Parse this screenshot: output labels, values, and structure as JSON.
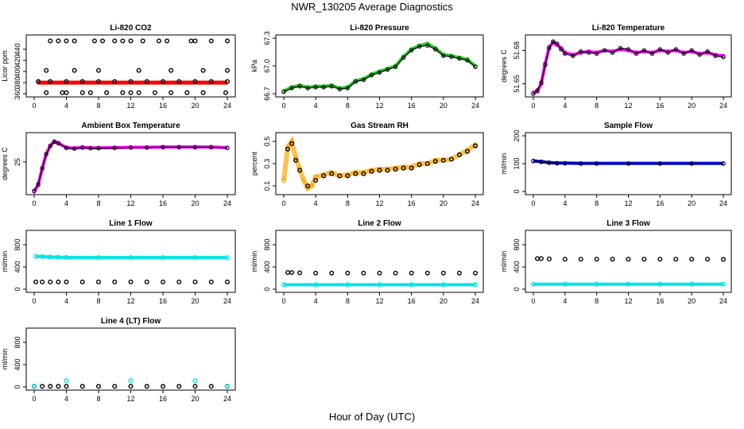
{
  "title": "NWR_130205  Average Diagnostics",
  "xlabel": "Hour of Day (UTC)",
  "chart_data": [
    {
      "type": "scatter",
      "title": "Li-820 CO2",
      "ylabel": "Licor ppm",
      "xlim": [
        0,
        24
      ],
      "ylim": [
        360,
        460
      ],
      "xticks": [
        "0",
        "4",
        "8",
        "12",
        "16",
        "20",
        "24"
      ],
      "yticks": [
        360,
        380,
        400,
        420,
        440
      ],
      "series": [
        {
          "name": "red",
          "color": "#ff0000",
          "marker": "filled",
          "x": [
            0.4,
            24
          ],
          "y": [
            380,
            380
          ]
        },
        {
          "name": "black",
          "color": "#000000",
          "marker": "open",
          "x": [
            2,
            3,
            4,
            5,
            7.5,
            8.5,
            10,
            11,
            12,
            13.5,
            15.5,
            16.5,
            19.5,
            20,
            22,
            24,
            0.5,
            2,
            4,
            6,
            8,
            10,
            12,
            14,
            16,
            18,
            20,
            22,
            24,
            1.5,
            3.5,
            4,
            6,
            7,
            9,
            11,
            12,
            13,
            15,
            17,
            19,
            21,
            23.8,
            1.5,
            5,
            8,
            13,
            17,
            21,
            24
          ],
          "y": [
            455,
            455,
            455,
            455,
            455,
            455,
            455,
            455,
            455,
            455,
            455,
            455,
            455,
            455,
            455,
            455,
            382,
            382,
            382,
            382,
            382,
            382,
            382,
            382,
            382,
            382,
            382,
            382,
            382,
            362,
            362,
            362,
            362,
            362,
            362,
            362,
            362,
            362,
            362,
            362,
            362,
            362,
            362,
            402,
            402,
            402,
            402,
            402,
            402,
            402
          ]
        }
      ]
    },
    {
      "type": "line",
      "title": "Li-820 Pressure",
      "ylabel": "kPa",
      "xlim": [
        0,
        24
      ],
      "ylim": [
        66.7,
        67.3
      ],
      "xticks": [
        "0",
        "4",
        "8",
        "12",
        "16",
        "20",
        "24"
      ],
      "yticks": [
        "66.7",
        "67.0",
        "67.3"
      ],
      "series": [
        {
          "name": "band",
          "color": "#22cc22",
          "x": [
            0,
            1,
            2,
            3,
            4,
            5,
            6,
            7,
            8,
            9,
            10,
            11,
            12,
            13,
            14,
            15,
            16,
            17,
            18,
            19,
            20,
            21,
            22,
            23,
            24
          ],
          "y": [
            66.73,
            66.77,
            66.79,
            66.77,
            66.78,
            66.78,
            66.79,
            66.76,
            66.77,
            66.84,
            66.86,
            66.91,
            66.94,
            66.97,
            67.0,
            67.1,
            67.18,
            67.22,
            67.24,
            67.19,
            67.12,
            67.11,
            67.09,
            67.07,
            67.0
          ]
        },
        {
          "name": "black",
          "color": "#000000",
          "x": [
            0,
            1,
            2,
            3,
            4,
            5,
            6,
            7,
            8,
            9,
            10,
            11,
            12,
            13,
            14,
            15,
            16,
            17,
            18,
            19,
            20,
            21,
            22,
            23,
            24
          ],
          "y": [
            66.72,
            66.76,
            66.78,
            66.76,
            66.77,
            66.77,
            66.78,
            66.75,
            66.76,
            66.83,
            66.85,
            66.9,
            66.93,
            66.96,
            66.99,
            67.09,
            67.17,
            67.21,
            67.22,
            67.18,
            67.11,
            67.1,
            67.08,
            67.06,
            66.99
          ]
        }
      ]
    },
    {
      "type": "line",
      "title": "Li-820 Temperature",
      "ylabel": "degrees C",
      "xlim": [
        0,
        24
      ],
      "ylim": [
        51.641,
        51.691
      ],
      "xticks": [
        "0",
        "4",
        "8",
        "12",
        "16",
        "20",
        "24"
      ],
      "yticks": [
        "51.65",
        "51.68"
      ],
      "series": [
        {
          "name": "band",
          "color": "#ff00ff",
          "x": [
            0,
            0.5,
            1,
            1.5,
            2,
            2.5,
            3,
            3.5,
            4,
            5,
            6,
            7,
            8,
            9,
            10,
            11,
            12,
            13,
            14,
            15,
            16,
            17,
            18,
            19,
            20,
            21,
            22,
            23,
            24
          ],
          "y": [
            51.642,
            51.643,
            51.65,
            51.668,
            51.683,
            51.687,
            51.685,
            51.682,
            51.678,
            51.676,
            51.678,
            51.679,
            51.678,
            51.68,
            51.679,
            51.681,
            51.68,
            51.678,
            51.679,
            51.678,
            51.68,
            51.679,
            51.68,
            51.678,
            51.679,
            51.677,
            51.678,
            51.676,
            51.675
          ]
        },
        {
          "name": "black",
          "color": "#000000",
          "x": [
            0,
            0.5,
            1,
            1.5,
            2,
            2.5,
            3,
            3.5,
            4,
            5,
            6,
            7,
            8,
            9,
            10,
            11,
            12,
            13,
            14,
            15,
            16,
            17,
            18,
            19,
            20,
            21,
            22,
            23,
            24
          ],
          "y": [
            51.641,
            51.644,
            51.651,
            51.667,
            51.682,
            51.688,
            51.686,
            51.681,
            51.677,
            51.675,
            51.679,
            51.678,
            51.677,
            51.68,
            51.678,
            51.682,
            51.681,
            51.677,
            51.68,
            51.677,
            51.681,
            51.678,
            51.681,
            51.677,
            51.68,
            51.676,
            51.679,
            51.675,
            51.674
          ]
        }
      ]
    },
    {
      "type": "line",
      "title": "Ambient Box Temperature",
      "ylabel": "degrees C",
      "xlim": [
        0,
        24
      ],
      "ylim": [
        16,
        33
      ],
      "xticks": [
        "0",
        "4",
        "8",
        "12",
        "16",
        "20",
        "24"
      ],
      "yticks": [
        "25"
      ],
      "series": [
        {
          "name": "magenta",
          "color": "#ff00ff",
          "x": [
            0,
            0.5,
            1,
            1.5,
            2,
            2.5,
            3,
            4,
            5,
            6,
            7,
            8,
            10,
            12,
            14,
            16,
            18,
            20,
            22,
            24
          ],
          "y": [
            16,
            18,
            23,
            27.5,
            30,
            31.3,
            30.8,
            29.4,
            29.2,
            29.5,
            29.3,
            29.3,
            29.4,
            29.5,
            29.5,
            29.6,
            29.6,
            29.6,
            29.6,
            29.4
          ]
        },
        {
          "name": "black",
          "color": "#000000",
          "x": [
            0,
            0.5,
            1,
            1.5,
            2,
            2.5,
            3,
            4,
            5,
            6,
            7,
            8,
            10,
            12,
            14,
            16,
            18,
            20,
            22,
            24
          ],
          "y": [
            16.2,
            18.2,
            23.1,
            27.4,
            29.9,
            31.2,
            30.7,
            29.3,
            29.1,
            29.4,
            29.2,
            29.2,
            29.3,
            29.4,
            29.4,
            29.5,
            29.5,
            29.5,
            29.5,
            29.3
          ]
        }
      ]
    },
    {
      "type": "scatter",
      "title": "Gas Stream RH",
      "ylabel": "percent",
      "xlim": [
        0,
        24
      ],
      "ylim": [
        0.05,
        0.55
      ],
      "xticks": [
        "0",
        "4",
        "8",
        "12",
        "16",
        "20",
        "24"
      ],
      "yticks": [
        "0.1",
        "0.3",
        "0.5"
      ],
      "series": [
        {
          "name": "orange",
          "color": "#ffa500",
          "x": [
            0,
            0.5,
            1,
            1.5,
            2,
            2.5,
            3,
            3.5,
            4,
            5,
            6,
            7,
            8,
            9,
            10,
            11,
            12,
            13,
            14,
            15,
            16,
            17,
            18,
            19,
            20,
            21,
            22,
            23,
            24
          ],
          "y": [
            0.15,
            0.45,
            0.5,
            0.35,
            0.25,
            0.15,
            0.08,
            0.1,
            0.18,
            0.2,
            0.22,
            0.19,
            0.2,
            0.22,
            0.22,
            0.24,
            0.25,
            0.25,
            0.26,
            0.27,
            0.27,
            0.3,
            0.3,
            0.33,
            0.33,
            0.34,
            0.38,
            0.42,
            0.47
          ]
        },
        {
          "name": "black",
          "color": "#000000",
          "x": [
            0.5,
            1,
            1.5,
            2,
            3,
            4,
            5,
            6,
            7,
            8,
            9,
            10,
            11,
            12,
            13,
            14,
            15,
            16,
            17,
            18,
            19,
            20,
            21,
            22,
            23,
            24
          ],
          "y": [
            0.43,
            0.48,
            0.33,
            0.24,
            0.1,
            0.15,
            0.19,
            0.21,
            0.19,
            0.19,
            0.21,
            0.21,
            0.23,
            0.24,
            0.24,
            0.25,
            0.26,
            0.26,
            0.29,
            0.3,
            0.32,
            0.33,
            0.34,
            0.38,
            0.41,
            0.46
          ]
        }
      ]
    },
    {
      "type": "line",
      "title": "Sample Flow",
      "ylabel": "ml/min",
      "xlim": [
        0,
        24
      ],
      "ylim": [
        0,
        200
      ],
      "xticks": [
        "0",
        "4",
        "8",
        "12",
        "16",
        "20",
        "24"
      ],
      "yticks": [
        0,
        100,
        200
      ],
      "series": [
        {
          "name": "blue",
          "color": "#0000ee",
          "x": [
            0,
            1,
            2,
            3,
            4,
            6,
            8,
            12,
            16,
            20,
            24
          ],
          "y": [
            110,
            107,
            104,
            102,
            102,
            101,
            101,
            101,
            101,
            101,
            101
          ]
        },
        {
          "name": "black",
          "color": "#000000",
          "x": [
            0,
            1,
            2,
            3,
            4,
            6,
            8,
            12,
            16,
            20,
            24
          ],
          "y": [
            109,
            106,
            103,
            101,
            101,
            100,
            100,
            100,
            100,
            100,
            100
          ]
        }
      ]
    },
    {
      "type": "scatter",
      "title": "Line 1 Flow",
      "ylabel": "ml/min",
      "xlim": [
        0,
        24
      ],
      "ylim": [
        0,
        1000
      ],
      "xticks": [
        "0",
        "4",
        "8",
        "12",
        "16",
        "20",
        "24"
      ],
      "yticks": [
        0,
        400,
        800
      ],
      "series": [
        {
          "name": "cyan",
          "color": "#00e5e5",
          "x": [
            0.2,
            1,
            2,
            3,
            4,
            8,
            12,
            16,
            20,
            24
          ],
          "y": [
            590,
            585,
            578,
            575,
            572,
            570,
            570,
            570,
            570,
            568
          ]
        },
        {
          "name": "black",
          "color": "#000000",
          "x": [
            0.2,
            1,
            2,
            3,
            4,
            6,
            8,
            10,
            12,
            14,
            16,
            18,
            20,
            22,
            24
          ],
          "y": [
            130,
            130,
            130,
            130,
            130,
            130,
            130,
            130,
            130,
            130,
            130,
            130,
            130,
            130,
            130
          ]
        }
      ]
    },
    {
      "type": "scatter",
      "title": "Line 2 Flow",
      "ylabel": "ml/min",
      "xlim": [
        0,
        24
      ],
      "ylim": [
        0,
        1000
      ],
      "xticks": [
        "0",
        "4",
        "8",
        "12",
        "16",
        "20",
        "24"
      ],
      "yticks": [
        0,
        400,
        800
      ],
      "series": [
        {
          "name": "black",
          "color": "#000000",
          "x": [
            0.5,
            1,
            2,
            4,
            6,
            8,
            10,
            12,
            14,
            16,
            18,
            20,
            22,
            24
          ],
          "y": [
            300,
            300,
            295,
            290,
            290,
            290,
            290,
            290,
            290,
            290,
            290,
            290,
            290,
            290
          ]
        },
        {
          "name": "cyan",
          "color": "#00e5e5",
          "x": [
            0,
            4,
            8,
            12,
            16,
            20,
            24
          ],
          "y": [
            80,
            80,
            80,
            80,
            80,
            80,
            80
          ]
        }
      ]
    },
    {
      "type": "scatter",
      "title": "Line 3 Flow",
      "ylabel": "ml/min",
      "xlim": [
        0,
        24
      ],
      "ylim": [
        0,
        1000
      ],
      "xticks": [
        "0",
        "4",
        "8",
        "12",
        "16",
        "20",
        "24"
      ],
      "yticks": [
        0,
        400,
        800
      ],
      "series": [
        {
          "name": "black",
          "color": "#000000",
          "x": [
            0.5,
            1,
            2,
            4,
            6,
            8,
            10,
            12,
            14,
            16,
            18,
            20,
            22,
            24
          ],
          "y": [
            550,
            550,
            545,
            540,
            540,
            540,
            540,
            540,
            540,
            540,
            540,
            540,
            540,
            535
          ]
        },
        {
          "name": "cyan",
          "color": "#00e5e5",
          "x": [
            0,
            4,
            8,
            12,
            16,
            20,
            24
          ],
          "y": [
            90,
            90,
            90,
            90,
            90,
            90,
            90
          ]
        }
      ]
    },
    {
      "type": "scatter",
      "title": "Line 4 (LT) Flow",
      "ylabel": "ml/min",
      "xlim": [
        0,
        24
      ],
      "ylim": [
        0,
        1000
      ],
      "xticks": [
        "0",
        "4",
        "8",
        "12",
        "16",
        "20",
        "24"
      ],
      "yticks": [
        0,
        400,
        800
      ],
      "series": [
        {
          "name": "black",
          "color": "#000000",
          "x": [
            0,
            1,
            2,
            3,
            4,
            6,
            8,
            10,
            12,
            14,
            16,
            18,
            20,
            22,
            24
          ],
          "y": [
            10,
            10,
            10,
            10,
            10,
            10,
            10,
            10,
            10,
            10,
            10,
            10,
            10,
            10,
            10
          ]
        },
        {
          "name": "cyan",
          "color": "#00e5e5",
          "x": [
            0,
            4,
            12,
            20,
            24
          ],
          "y": [
            15,
            110,
            110,
            110,
            15
          ]
        }
      ]
    }
  ]
}
